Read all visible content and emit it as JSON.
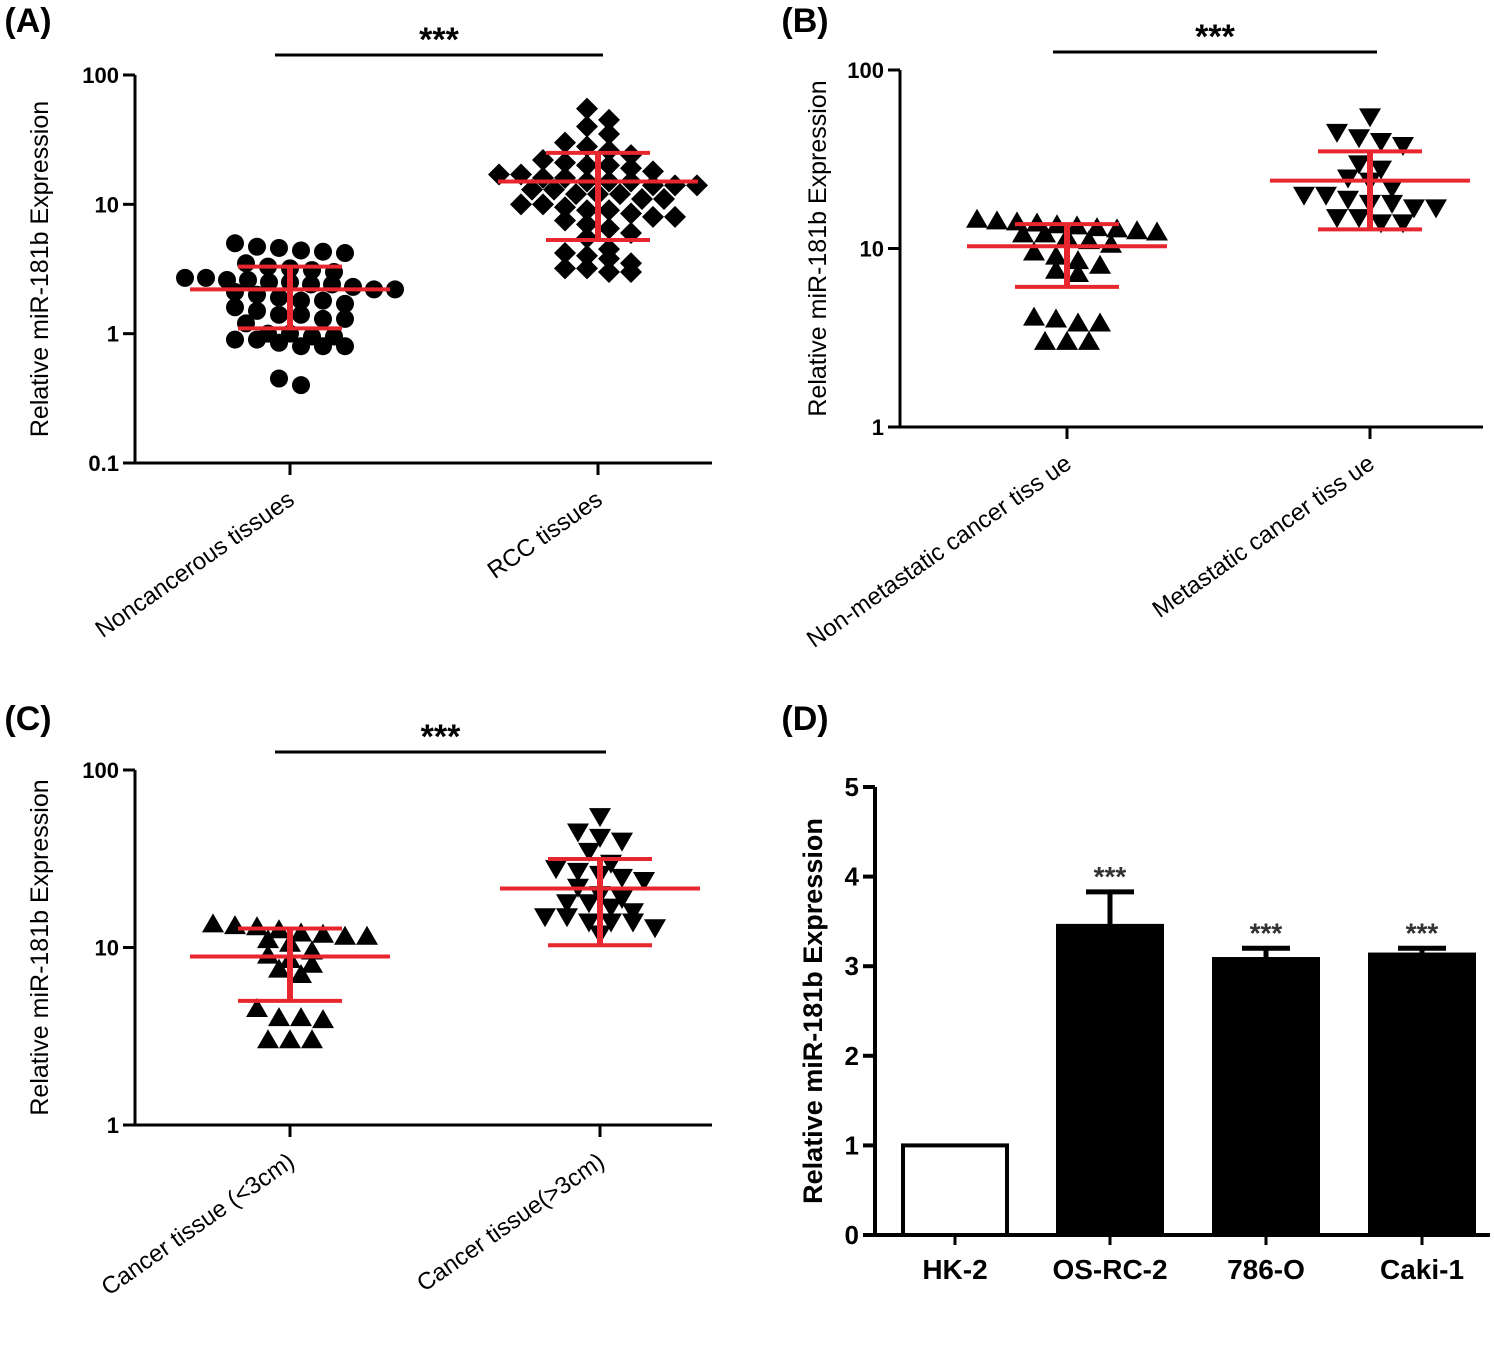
{
  "colors": {
    "axis": "#000000",
    "marker": "#000000",
    "error_bar": "#e8262d",
    "bar_fill": "#000000",
    "bar_open": "#ffffff"
  },
  "chart_data": [
    {
      "id": "A",
      "panel_label": "(A)",
      "type": "scatter",
      "scale": "log",
      "ylabel": "Relative miR-181b Expression",
      "ylim": [
        0.1,
        100
      ],
      "yticks": [
        "100",
        "10",
        "1",
        "0.1"
      ],
      "categories": [
        "Noncancerous tissues",
        "RCC tissues"
      ],
      "markers": [
        "circle",
        "diamond"
      ],
      "series": [
        {
          "category": "Noncancerous tissues",
          "mean": 2.2,
          "sd_low": 1.1,
          "sd_high": 3.3,
          "values": [
            4.7,
            4.3,
            5.0,
            4.6,
            4.2,
            4.4,
            3.5,
            3.3,
            3.2,
            3.0,
            3.1,
            2.6,
            2.5,
            2.7,
            2.4,
            2.6,
            2.7,
            2.5,
            2.4,
            2.3,
            2.2,
            2.1,
            2.0,
            2.2,
            1.9,
            1.8,
            1.7,
            1.8,
            1.6,
            1.5,
            1.4,
            1.3,
            1.4,
            1.3,
            1.2,
            1.0,
            0.95,
            0.9,
            0.85,
            0.95,
            0.9,
            1.0,
            0.8,
            0.8,
            0.8,
            0.45,
            0.4
          ]
        },
        {
          "category": "RCC tissues",
          "mean": 15,
          "sd_low": 5.3,
          "sd_high": 25,
          "values": [
            55,
            45,
            40,
            35,
            30,
            28,
            26,
            24,
            22,
            20,
            21,
            20,
            19,
            18,
            17,
            17,
            16,
            16,
            15,
            15,
            15,
            14,
            14,
            14,
            13,
            13,
            12,
            12,
            12,
            11,
            11,
            10,
            10,
            9.5,
            9,
            9,
            8.5,
            8,
            8,
            7.5,
            7,
            6.5,
            6,
            5.5,
            4.5,
            4.2,
            4.0,
            3.8,
            3.5,
            3.2,
            3.0,
            3.0,
            3.2
          ]
        }
      ],
      "significance": "***"
    },
    {
      "id": "B",
      "panel_label": "(B)",
      "type": "scatter",
      "scale": "log",
      "ylabel": "Relative miR-181b Expression",
      "ylim": [
        1,
        100
      ],
      "yticks": [
        "100",
        "10",
        "1"
      ],
      "categories": [
        "Non-metastatic cancer tiss ue",
        "Metastatic cancer tiss ue"
      ],
      "markers": [
        "triangle-up",
        "triangle-down"
      ],
      "series": [
        {
          "category": "Non-metastatic cancer tiss ue",
          "mean": 10.3,
          "sd_low": 6.1,
          "sd_high": 13.7,
          "values": [
            14.5,
            14.0,
            13.8,
            14.2,
            13.5,
            13.0,
            13.3,
            12.5,
            12.0,
            12.3,
            12.8,
            12.0,
            11.5,
            11.0,
            10.5,
            9.5,
            9.0,
            8.5,
            8.0,
            7.5,
            7.2,
            4.1,
            3.8,
            3.8,
            4.0,
            3.0,
            3.0,
            3.0
          ]
        },
        {
          "category": "Metastatic cancer tiss ue",
          "mean": 24,
          "sd_low": 12.8,
          "sd_high": 35,
          "values": [
            55,
            45,
            42,
            40,
            38,
            30,
            28,
            25,
            24,
            22,
            20,
            20,
            19,
            18,
            18,
            17,
            15,
            15,
            14,
            14,
            17
          ]
        }
      ],
      "significance": "***"
    },
    {
      "id": "C",
      "panel_label": "(C)",
      "type": "scatter",
      "scale": "log",
      "ylabel": "Relative miR-181b Expression",
      "ylim": [
        1,
        100
      ],
      "yticks": [
        "100",
        "10",
        "1"
      ],
      "categories": [
        "Cancer tissue (<3cm)",
        "Cancer tissue(>3cm)"
      ],
      "markers": [
        "triangle-up",
        "triangle-down"
      ],
      "series": [
        {
          "category": "Cancer tissue (<3cm)",
          "mean": 8.9,
          "sd_low": 5.0,
          "sd_high": 12.8,
          "values": [
            13.5,
            13.2,
            13.0,
            12.5,
            12.0,
            11.5,
            11.8,
            11.5,
            11.0,
            10.5,
            9.5,
            9.0,
            8.5,
            8.0,
            7.5,
            7.0,
            4.5,
            4.0,
            3.9,
            4.0,
            3.0,
            3.0,
            3.0
          ]
        },
        {
          "category": "Cancer tissue(>3cm)",
          "mean": 21.5,
          "sd_low": 10.3,
          "sd_high": 31.5,
          "values": [
            55,
            45,
            42,
            40,
            35,
            30,
            28,
            27,
            26,
            25,
            24,
            22,
            20,
            19,
            18,
            18,
            17,
            16,
            15,
            15,
            14,
            14,
            14,
            12,
            13
          ]
        }
      ],
      "significance": "***"
    },
    {
      "id": "D",
      "panel_label": "(D)",
      "type": "bar",
      "ylabel": "Relative miR-181b Expression",
      "ylim": [
        0,
        5
      ],
      "yticks": [
        "5",
        "4",
        "3",
        "2",
        "1",
        "0"
      ],
      "categories": [
        "HK-2",
        "OS-RC-2",
        "786-O",
        "Caki-1"
      ],
      "values": [
        1.0,
        3.45,
        3.08,
        3.13
      ],
      "errors": [
        0,
        0.38,
        0.12,
        0.07
      ],
      "fill": [
        "open",
        "filled",
        "filled",
        "filled"
      ],
      "significance": [
        "",
        "***",
        "***",
        "***"
      ]
    }
  ]
}
